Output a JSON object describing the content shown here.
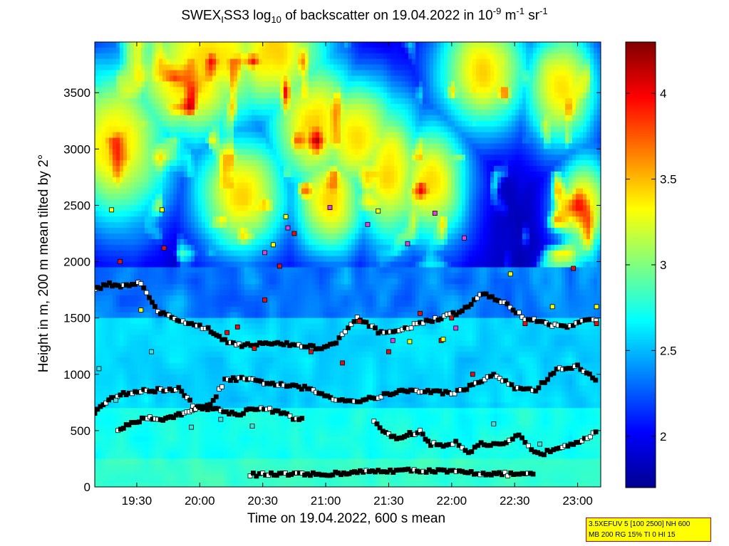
{
  "title": {
    "prefix": "SWEX",
    "sub1": "I",
    "mid1": "SS3 log",
    "sub2": "10",
    "mid2": " of backscatter on 19.04.2022 in 10",
    "sup1": "-9",
    "mid3": " m",
    "sup2": "-1",
    "mid4": " sr",
    "sup3": "-1"
  },
  "infobox": {
    "line1": "3.5XEFUV 5 [100 2500] NH 600",
    "line2": "MB 200 RG 15% TI 0 HI 15"
  },
  "colors": {
    "background_low": "#00008f",
    "marker_black": "#000000",
    "marker_white": "#ffffff",
    "marker_red": "#e01010",
    "marker_yellow": "#ffff00",
    "marker_magenta": "#e040e0",
    "marker_cyan": "#40e0e0"
  },
  "chart_data": {
    "type": "heatmap",
    "xlabel": "Time on 19.04.2022, 600 s mean",
    "ylabel": "Height in m, 200 m mean tilted by 2°",
    "x_ticks": [
      "19:30",
      "20:00",
      "20:30",
      "21:00",
      "21:30",
      "22:00",
      "22:30",
      "23:00"
    ],
    "x_tick_minutes": [
      1170,
      1200,
      1230,
      1260,
      1290,
      1320,
      1350,
      1380
    ],
    "xlim_minutes": [
      1150,
      1391
    ],
    "y_ticks": [
      "0",
      "500",
      "1000",
      "1500",
      "2000",
      "2500",
      "3000",
      "3500"
    ],
    "y_tick_values": [
      0,
      500,
      1000,
      1500,
      2000,
      2500,
      3000,
      3500
    ],
    "ylim": [
      0,
      3950
    ],
    "colorbar_ticks": [
      "2",
      "2.5",
      "3",
      "3.5",
      "4"
    ],
    "colorbar_tick_values": [
      2,
      2.5,
      3,
      3.5,
      4
    ],
    "clim": [
      1.7,
      4.3
    ],
    "colormap": "jet",
    "field_summary": "log10 backscatter, ~2.6-2.9 below 500 m, ~2.2-2.6 from 500-1900 m, ~1.8 above 1900 m with patches 2.8-3.9 above 2200 m",
    "layer_tracks": [
      {
        "name": "near-ground",
        "points": [
          [
            1224,
            110
          ],
          [
            1230,
            110
          ],
          [
            1238,
            110
          ],
          [
            1245,
            110
          ],
          [
            1250,
            110
          ],
          [
            1258,
            110
          ],
          [
            1266,
            120
          ],
          [
            1275,
            130
          ],
          [
            1285,
            140
          ],
          [
            1295,
            145
          ],
          [
            1305,
            145
          ],
          [
            1315,
            140
          ],
          [
            1325,
            130
          ],
          [
            1335,
            120
          ],
          [
            1344,
            115
          ],
          [
            1355,
            110
          ],
          [
            1360,
            110
          ]
        ]
      },
      {
        "name": "low",
        "points": [
          [
            1161,
            500
          ],
          [
            1165,
            540
          ],
          [
            1170,
            580
          ],
          [
            1175,
            620
          ],
          [
            1180,
            600
          ],
          [
            1185,
            610
          ],
          [
            1190,
            640
          ],
          [
            1195,
            680
          ],
          [
            1200,
            700
          ],
          [
            1205,
            700
          ],
          [
            1210,
            680
          ],
          [
            1218,
            640
          ],
          [
            1225,
            700
          ],
          [
            1232,
            690
          ],
          [
            1240,
            650
          ],
          [
            1246,
            600
          ],
          [
            1250,
            600
          ]
        ]
      },
      {
        "name": "low-2",
        "points": [
          [
            1283,
            570
          ],
          [
            1290,
            460
          ],
          [
            1295,
            430
          ],
          [
            1300,
            470
          ],
          [
            1305,
            490
          ],
          [
            1310,
            380
          ],
          [
            1316,
            370
          ],
          [
            1322,
            400
          ],
          [
            1328,
            310
          ],
          [
            1334,
            380
          ],
          [
            1340,
            370
          ],
          [
            1346,
            380
          ],
          [
            1352,
            460
          ],
          [
            1358,
            320
          ],
          [
            1364,
            300
          ],
          [
            1370,
            350
          ],
          [
            1378,
            390
          ],
          [
            1386,
            450
          ],
          [
            1390,
            510
          ]
        ]
      },
      {
        "name": "mid",
        "points": [
          [
            1150,
            650
          ],
          [
            1158,
            800
          ],
          [
            1165,
            830
          ],
          [
            1172,
            850
          ],
          [
            1180,
            860
          ],
          [
            1190,
            870
          ],
          [
            1198,
            700
          ],
          [
            1205,
            720
          ],
          [
            1212,
            950
          ],
          [
            1220,
            960
          ],
          [
            1240,
            900
          ],
          [
            1250,
            880
          ],
          [
            1265,
            780
          ],
          [
            1275,
            760
          ],
          [
            1285,
            800
          ],
          [
            1295,
            850
          ],
          [
            1310,
            850
          ],
          [
            1320,
            830
          ],
          [
            1330,
            900
          ],
          [
            1340,
            1000
          ],
          [
            1350,
            880
          ],
          [
            1360,
            860
          ],
          [
            1370,
            1040
          ],
          [
            1380,
            1070
          ],
          [
            1390,
            930
          ]
        ]
      },
      {
        "name": "upper",
        "points": [
          [
            1150,
            1760
          ],
          [
            1157,
            1800
          ],
          [
            1165,
            1780
          ],
          [
            1172,
            1820
          ],
          [
            1180,
            1560
          ],
          [
            1188,
            1490
          ],
          [
            1196,
            1450
          ],
          [
            1204,
            1400
          ],
          [
            1212,
            1300
          ],
          [
            1220,
            1260
          ],
          [
            1230,
            1270
          ],
          [
            1240,
            1270
          ],
          [
            1250,
            1250
          ],
          [
            1258,
            1230
          ],
          [
            1265,
            1280
          ],
          [
            1275,
            1500
          ],
          [
            1285,
            1380
          ],
          [
            1295,
            1380
          ],
          [
            1305,
            1460
          ],
          [
            1315,
            1500
          ],
          [
            1325,
            1560
          ],
          [
            1335,
            1720
          ],
          [
            1345,
            1630
          ],
          [
            1355,
            1500
          ],
          [
            1365,
            1450
          ],
          [
            1375,
            1420
          ],
          [
            1385,
            1490
          ],
          [
            1390,
            1460
          ]
        ]
      }
    ],
    "colored_marker_groups": {
      "red": [
        [
          1162,
          2000
        ],
        [
          1183,
          2120
        ],
        [
          1213,
          1370
        ],
        [
          1218,
          1420
        ],
        [
          1226,
          1230
        ],
        [
          1231,
          1660
        ],
        [
          1238,
          1960
        ],
        [
          1245,
          2250
        ],
        [
          1253,
          1200
        ],
        [
          1268,
          1100
        ],
        [
          1276,
          1470
        ],
        [
          1290,
          1200
        ],
        [
          1305,
          1540
        ],
        [
          1315,
          1300
        ],
        [
          1320,
          1500
        ],
        [
          1330,
          1000
        ],
        [
          1355,
          1450
        ],
        [
          1378,
          1940
        ],
        [
          1389,
          1450
        ]
      ],
      "yellow": [
        [
          1158,
          2460
        ],
        [
          1172,
          1570
        ],
        [
          1182,
          2460
        ],
        [
          1235,
          2150
        ],
        [
          1241,
          2400
        ],
        [
          1285,
          2450
        ],
        [
          1300,
          1290
        ],
        [
          1316,
          1310
        ],
        [
          1348,
          1890
        ],
        [
          1368,
          1600
        ],
        [
          1389,
          1600
        ]
      ],
      "magenta": [
        [
          1231,
          2080
        ],
        [
          1242,
          2300
        ],
        [
          1262,
          2480
        ],
        [
          1280,
          2330
        ],
        [
          1292,
          1300
        ],
        [
          1299,
          2160
        ],
        [
          1312,
          2430
        ],
        [
          1322,
          1410
        ],
        [
          1326,
          2210
        ]
      ],
      "cyan": [
        [
          1152,
          1050
        ],
        [
          1160,
          770
        ],
        [
          1177,
          1200
        ],
        [
          1196,
          530
        ],
        [
          1210,
          600
        ],
        [
          1225,
          540
        ],
        [
          1340,
          560
        ],
        [
          1362,
          380
        ]
      ]
    }
  }
}
